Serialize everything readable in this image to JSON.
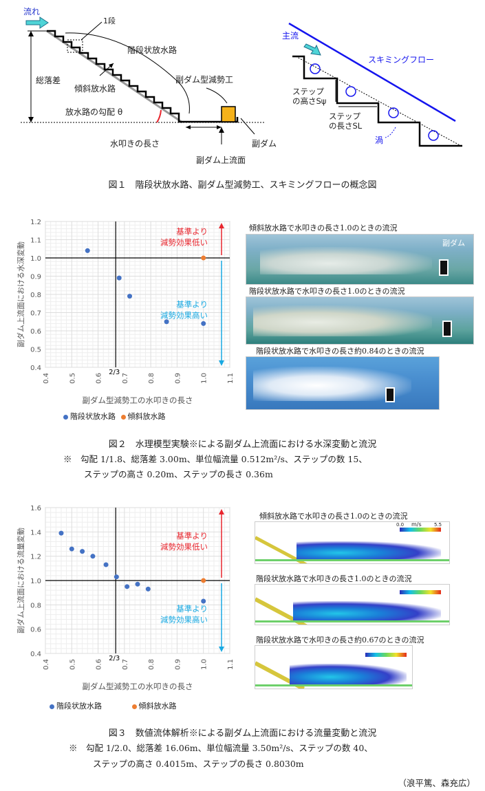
{
  "fig1": {
    "labels": {
      "flow": "流れ",
      "one_step": "1段",
      "stepped": "階段状放水路",
      "total_drop": "総落差",
      "inclined": "傾斜放水路",
      "slope": "放水路の勾配 θ",
      "subdam_work": "副ダム型減勢工",
      "apron": "水叩きの長さ",
      "subdam": "副ダム",
      "upstream_face": "副ダム上流面",
      "main_flow": "主流",
      "skimming": "スキミングフロー",
      "step_height": "ステップ",
      "step_height2": "の高さSψ",
      "step_length": "ステップ",
      "step_length2": "の長さSL",
      "vortex": "渦"
    },
    "caption": "図１　階段状放水路、副ダム型減勢工、スキミングフローの概念図"
  },
  "fig2": {
    "caption": "図２　水理模型実験※による副ダム上流面における水深変動と流況",
    "note1": "※　勾配 1/1.8、総落差 3.00m、単位幅流量 0.512m²/s、ステップの数 15、",
    "note2": "ステップの高さ 0.20m、ステップの長さ 0.36m",
    "photo_titles": [
      "傾斜放水路で水叩きの長さ1.0のときの流況",
      "階段状放水路で水叩きの長さ1.0のときの流況",
      "階段状放水路で水叩きの長さ約0.84のときの流況"
    ],
    "subdam_label": "副ダム",
    "legend": [
      "階段状放水路",
      "傾斜放水路"
    ],
    "annot_high": [
      "基準より",
      "減勢効果低い"
    ],
    "annot_low": [
      "基準より",
      "減勢効果高い"
    ]
  },
  "fig3": {
    "caption": "図３　数値流体解析※による副ダム上流面における流量変動と流況",
    "note1": "※　勾配 1/2.0、総落差 16.06m、単位幅流量 3.50m²/s、ステップの数 40、",
    "note2": "ステップの高さ 0.4015m、ステップの長さ 0.8030m",
    "sim_titles": [
      "傾斜放水路で水叩きの長さ1.0のときの流況",
      "階段状放水路で水叩きの長さ1.0のときの流況",
      "階段状放水路で水叩きの長さ約0.67のときの流況"
    ],
    "colorbar": {
      "min": "0.0",
      "unit": "m/s",
      "max": "5.5"
    },
    "legend": [
      "階段状放水路",
      "傾斜放水路"
    ],
    "annot_high": [
      "基準より",
      "減勢効果低い"
    ],
    "annot_low": [
      "基準より",
      "減勢効果高い"
    ]
  },
  "authors": "（浪平篤、森充広）",
  "colors": {
    "stepped": "#4472C4",
    "inclined": "#ED7D31",
    "red": "#E8262E",
    "cyan": "#19A9E2"
  },
  "chart_data": [
    {
      "type": "scatter",
      "xlabel": "副ダム型減勢工の水叩きの長さ",
      "ylabel": "副ダム上流面における水深変動",
      "xlim": [
        0.4,
        1.1
      ],
      "ylim": [
        0.4,
        1.2
      ],
      "xticks": [
        "0.4",
        "0.5",
        "0.6",
        "0.7",
        "0.8",
        "0.9",
        "1.0",
        "1.1"
      ],
      "yticks": [
        "0.4",
        "0.5",
        "0.6",
        "0.7",
        "0.8",
        "0.9",
        "1.0",
        "1.1",
        "1.2"
      ],
      "ref_x_label": "2/3",
      "ref_x": 0.667,
      "ref_y": 1.0,
      "series": [
        {
          "name": "階段状放水路",
          "color": "#4472C4",
          "points": [
            [
              0.56,
              1.04
            ],
            [
              0.68,
              0.89
            ],
            [
              0.72,
              0.79
            ],
            [
              0.86,
              0.65
            ],
            [
              1.0,
              0.64
            ]
          ]
        },
        {
          "name": "傾斜放水路",
          "color": "#ED7D31",
          "points": [
            [
              1.0,
              1.0
            ]
          ]
        }
      ]
    },
    {
      "type": "scatter",
      "xlabel": "副ダム型減勢工の水叩きの長さ",
      "ylabel": "副ダム上流面における流量変動",
      "xlim": [
        0.4,
        1.1
      ],
      "ylim": [
        0.4,
        1.6
      ],
      "xticks": [
        "0.4",
        "0.5",
        "0.6",
        "0.7",
        "0.8",
        "0.9",
        "1.0",
        "1.1"
      ],
      "yticks": [
        "0.4",
        "0.6",
        "0.8",
        "1.0",
        "1.2",
        "1.4",
        "1.6"
      ],
      "ref_x_label": "2/3",
      "ref_x": 0.667,
      "ref_y": 1.0,
      "series": [
        {
          "name": "階段状放水路",
          "color": "#4472C4",
          "points": [
            [
              0.46,
              1.39
            ],
            [
              0.5,
              1.26
            ],
            [
              0.54,
              1.24
            ],
            [
              0.58,
              1.2
            ],
            [
              0.63,
              1.13
            ],
            [
              0.67,
              1.03
            ],
            [
              0.71,
              0.95
            ],
            [
              0.75,
              0.97
            ],
            [
              0.79,
              0.93
            ],
            [
              1.0,
              0.83
            ]
          ]
        },
        {
          "name": "傾斜放水路",
          "color": "#ED7D31",
          "points": [
            [
              1.0,
              1.0
            ]
          ]
        }
      ]
    }
  ]
}
